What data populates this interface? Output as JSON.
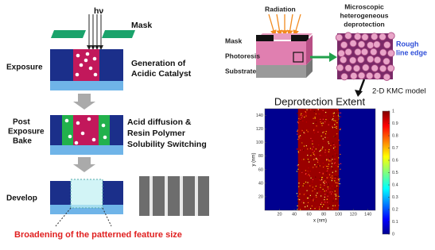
{
  "exposure_diagram": {
    "light": "hν",
    "mask": "Mask",
    "steps": [
      {
        "label": [
          "Exposure"
        ],
        "description": [
          "Generation of",
          "Acidic Catalyst"
        ]
      },
      {
        "label": [
          "Post",
          "Exposure",
          "Bake"
        ],
        "description": [
          "Acid diffusion &",
          "Resin Polymer",
          "Solubility Switching"
        ]
      },
      {
        "label": [
          "Develop"
        ]
      }
    ],
    "note": "Broadening of the patterned feature size"
  },
  "simulation": {
    "radiation": "Radiation",
    "layers": [
      "Mask",
      "Photoresis",
      "Substrate"
    ],
    "zoom_caption": [
      "Microscopic",
      "heterogeneous",
      "deprotection"
    ],
    "edge_label": [
      "Rough",
      "line edge"
    ],
    "model": "2-D KMC model"
  },
  "plot": {
    "title": "Deprotection Extent",
    "xlabel": "x (nm)",
    "ylabel": "y (nm)",
    "xlim": [
      0,
      150
    ],
    "ylim": [
      0,
      150
    ],
    "xticks": [
      20,
      40,
      60,
      80,
      100,
      120,
      140
    ],
    "yticks": [
      20,
      40,
      60,
      80,
      100,
      120,
      140
    ],
    "colorbar_lim": [
      0,
      1
    ],
    "colorbar_ticks": [
      0,
      0.1,
      0.2,
      0.3,
      0.4,
      0.5,
      0.6,
      0.7,
      0.8,
      0.9,
      1
    ]
  }
}
